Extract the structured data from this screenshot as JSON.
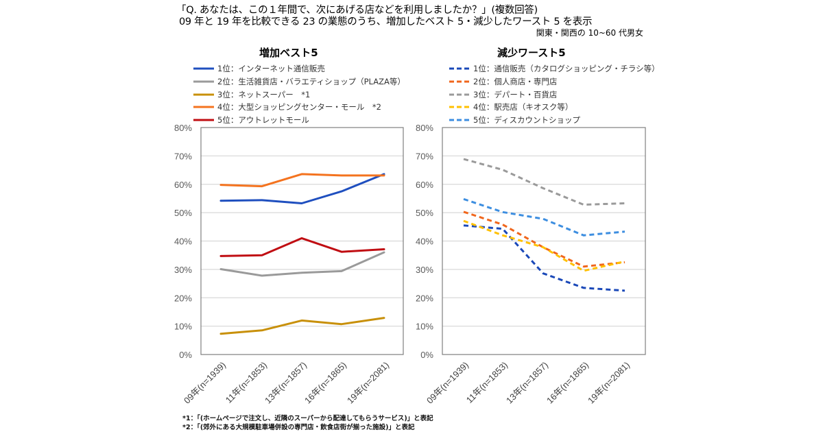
{
  "header": {
    "question": "「Q. あなたは、この１年間で、次にあげる店などを利用しましたか？」(複数回答)",
    "subtitle": "09 年と 19 年を比較できる 23 の業態のうち、増加したベスト 5・減少したワースト 5 を表示",
    "population": "関東・関西の 10~60 代男女"
  },
  "footnotes": [
    "*1：「(ホームページで注文し、近隣のスーパーから配達してもらうサービス)」と表記",
    "*2：「(郊外にある大規模駐車場併設の専門店・飲食店街が揃った施設)」と表記"
  ],
  "chart_data": [
    {
      "type": "line",
      "title": "増加ベスト5",
      "categories": [
        "09年(n=1939)",
        "11年(n=1853)",
        "13年(n=1857)",
        "16年(n=1865)",
        "19年(n=2081)"
      ],
      "ylim": [
        0,
        80
      ],
      "yticks": [
        "0%",
        "10%",
        "20%",
        "30%",
        "40%",
        "50%",
        "60%",
        "70%",
        "80%"
      ],
      "grid": true,
      "legend": "top",
      "line_style": "solid",
      "series": [
        {
          "name": "1位：インターネット通信販売",
          "color": "#1f4fbf",
          "values": [
            54.2,
            54.4,
            53.3,
            57.5,
            63.6
          ]
        },
        {
          "name": "2位：生活雑貨店・バラエティショップ（PLAZA等）",
          "color": "#9a9a9a",
          "values": [
            30.1,
            27.8,
            28.8,
            29.4,
            36.0
          ]
        },
        {
          "name": "3位：ネットスーパー　*1",
          "color": "#c8900a",
          "values": [
            7.3,
            8.5,
            12.0,
            10.7,
            12.9
          ]
        },
        {
          "name": "4位：大型ショッピングセンター・モール　*2",
          "color": "#f4731f",
          "values": [
            59.8,
            59.3,
            63.6,
            63.1,
            63.1
          ]
        },
        {
          "name": "5位：アウトレットモール",
          "color": "#c00d12",
          "values": [
            34.7,
            35.0,
            41.0,
            36.2,
            37.1
          ]
        }
      ]
    },
    {
      "type": "line",
      "title": "減少ワースト5",
      "categories": [
        "09年(n=1939)",
        "11年(n=1853)",
        "13年(n=1857)",
        "16年(n=1865)",
        "19年(n=2081)"
      ],
      "ylim": [
        0,
        80
      ],
      "yticks": [
        "0%",
        "10%",
        "20%",
        "30%",
        "40%",
        "50%",
        "60%",
        "70%",
        "80%"
      ],
      "grid": true,
      "legend": "top",
      "line_style": "dashed",
      "series": [
        {
          "name": "1位：通信販売（カタログショッピング・チラシ等）",
          "color": "#1a48b8",
          "values": [
            45.5,
            44.3,
            28.6,
            23.5,
            22.5
          ]
        },
        {
          "name": "2位：個人商店・専門店",
          "color": "#f0661c",
          "values": [
            50.3,
            45.8,
            37.8,
            31.0,
            32.5
          ]
        },
        {
          "name": "3位：デパート・百貨店",
          "color": "#9a9a9a",
          "values": [
            68.9,
            65.1,
            58.6,
            52.8,
            53.3
          ]
        },
        {
          "name": "4位：駅売店（キオスク等）",
          "color": "#ffc000",
          "values": [
            47.1,
            42.0,
            37.8,
            29.5,
            32.8
          ]
        },
        {
          "name": "5位：ディスカウントショップ",
          "color": "#3d8ee0",
          "values": [
            54.8,
            50.2,
            47.8,
            42.0,
            43.3
          ]
        }
      ]
    }
  ]
}
